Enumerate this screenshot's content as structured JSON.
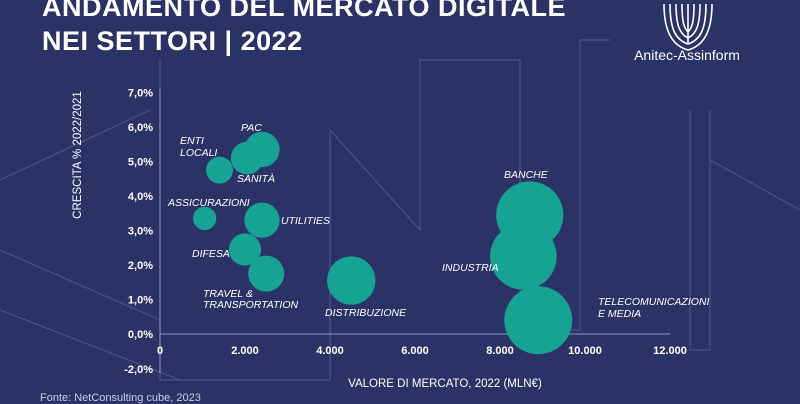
{
  "header": {
    "title_line1": "ANDAMENTO DEL MERCATO DIGITALE",
    "title_line2": "NEI SETTORI | 2022"
  },
  "brand": {
    "logo_icon": "shell-icon",
    "name": "Anitec-Assinform"
  },
  "source_note": "Fonte: NetConsulting cube, 2023",
  "colors": {
    "background": "#2b3366",
    "bubble": "#17a394",
    "text": "#ffffff"
  },
  "chart_data": {
    "type": "scatter",
    "xlabel": "VALORE DI MERCATO, 2022 (MLN€)",
    "ylabel": "CRESCITA % 2022/2021",
    "xlim": [
      0,
      12000
    ],
    "ylim": [
      -2,
      7
    ],
    "x_ticks": [
      0,
      2000,
      4000,
      6000,
      8000,
      10000,
      12000
    ],
    "x_tick_labels": [
      "0",
      "2.000",
      "4.000",
      "6.000",
      "8.000",
      "10.000",
      "12.000"
    ],
    "y_ticks": [
      7,
      6,
      5,
      4,
      3,
      2,
      1,
      0,
      -2
    ],
    "y_tick_labels": [
      "7,0%",
      "6,0%",
      "5,0%",
      "4,0%",
      "3,0%",
      "2,0%",
      "1,0%",
      "0,0%",
      "-2,0%"
    ],
    "points": [
      {
        "label": "ENTI LOCALI",
        "x": 1400,
        "y": 4.75,
        "size": 1400
      },
      {
        "label": "PAC",
        "x": 2400,
        "y": 5.35,
        "size": 2400
      },
      {
        "label": "SANITÀ",
        "x": 2050,
        "y": 5.1,
        "size": 2050
      },
      {
        "label": "ASSICURAZIONI",
        "x": 1050,
        "y": 3.35,
        "size": 1050
      },
      {
        "label": "UTILITIES",
        "x": 2400,
        "y": 3.3,
        "size": 2400
      },
      {
        "label": "DIFESA",
        "x": 2000,
        "y": 2.45,
        "size": 2000
      },
      {
        "label": "TRAVEL & TRANSPORTATION",
        "x": 2500,
        "y": 1.75,
        "size": 2500
      },
      {
        "label": "DISTRIBUZIONE",
        "x": 4500,
        "y": 1.55,
        "size": 4500
      },
      {
        "label": "BANCHE",
        "x": 8700,
        "y": 3.45,
        "size": 8700
      },
      {
        "label": "INDUSTRIA",
        "x": 8550,
        "y": 2.25,
        "size": 8550
      },
      {
        "label": "TELECOMUNICAZIONI E MEDIA",
        "x": 8900,
        "y": 0.4,
        "size": 8900
      }
    ]
  }
}
